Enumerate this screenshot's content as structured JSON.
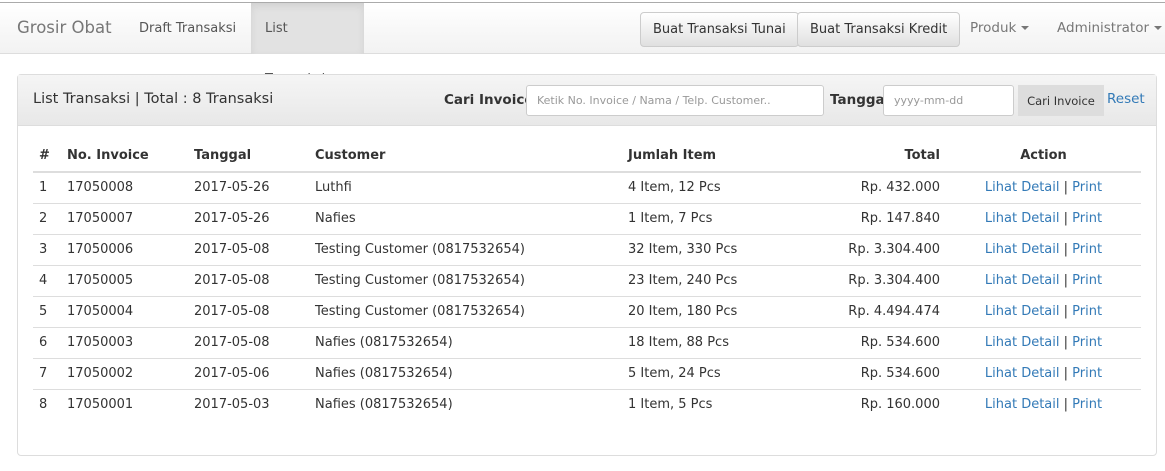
{
  "navbar": {
    "brand": "Grosir Obat",
    "links": [
      "Draft Transaksi",
      "List Transaksi"
    ],
    "active": "List Transaksi",
    "btn_tunai": "Buat Transaksi Tunai",
    "btn_kredit": "Buat Transaksi Kredit",
    "produk": "Produk",
    "admin": "Administrator"
  },
  "panel": {
    "title": "List Transaksi | Total : 8 Transaksi",
    "search_label": "Cari Invoice",
    "search_placeholder": "Ketik No. Invoice / Nama / Telp. Customer..",
    "date_label": "Tanggal",
    "date_placeholder": "yyyy-mm-dd",
    "search_button": "Cari Invoice",
    "reset": "Reset"
  },
  "table": {
    "headers": [
      "#",
      "No. Invoice",
      "Tanggal",
      "Customer",
      "Jumlah Item",
      "Total",
      "Action"
    ],
    "rows": [
      [
        "1",
        "17050008",
        "2017-05-26",
        "Luthfi",
        "4 Item, 12 Pcs",
        "Rp. 432.000"
      ],
      [
        "2",
        "17050007",
        "2017-05-26",
        "Nafies",
        "1 Item, 7 Pcs",
        "Rp. 147.840"
      ],
      [
        "3",
        "17050006",
        "2017-05-08",
        "Testing Customer (0817532654)",
        "32 Item, 330 Pcs",
        "Rp. 3.304.400"
      ],
      [
        "4",
        "17050005",
        "2017-05-08",
        "Testing Customer (0817532654)",
        "23 Item, 240 Pcs",
        "Rp. 3.304.400"
      ],
      [
        "5",
        "17050004",
        "2017-05-08",
        "Testing Customer (0817532654)",
        "20 Item, 180 Pcs",
        "Rp. 4.494.474"
      ],
      [
        "6",
        "17050003",
        "2017-05-08",
        "Nafies (0817532654)",
        "18 Item, 88 Pcs",
        "Rp. 534.600"
      ],
      [
        "7",
        "17050002",
        "2017-05-06",
        "Nafies (0817532654)",
        "5 Item, 24 Pcs",
        "Rp. 534.600"
      ],
      [
        "8",
        "17050001",
        "2017-05-03",
        "Nafies (0817532654)",
        "1 Item, 5 Pcs",
        "Rp. 160.000"
      ]
    ],
    "action_detail": "Lihat Detail",
    "action_sep": "|",
    "action_print": "Print"
  }
}
